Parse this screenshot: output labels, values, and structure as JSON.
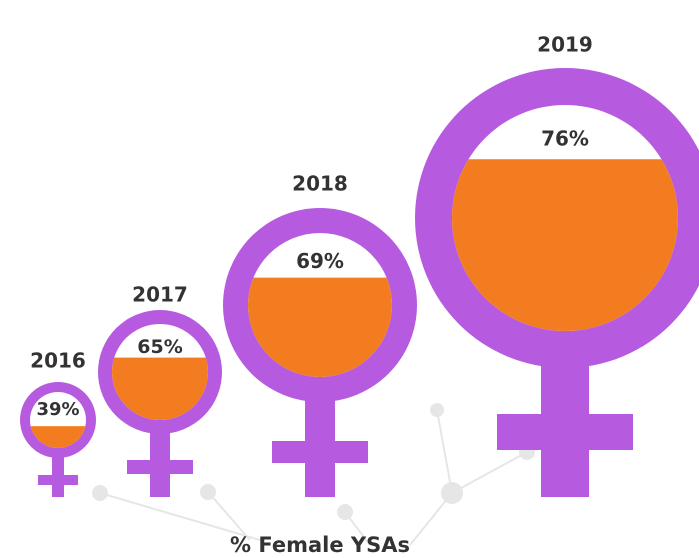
{
  "chart_data": {
    "type": "pictogram",
    "title": "% Female YSAs",
    "categories": [
      "2016",
      "2017",
      "2018",
      "2019"
    ],
    "values": [
      39,
      65,
      69,
      76
    ],
    "value_labels": [
      "39%",
      "65%",
      "69%",
      "76%"
    ],
    "ylim": [
      0,
      100
    ],
    "symbol_color": "#b65be0",
    "color": "#f47c20"
  }
}
